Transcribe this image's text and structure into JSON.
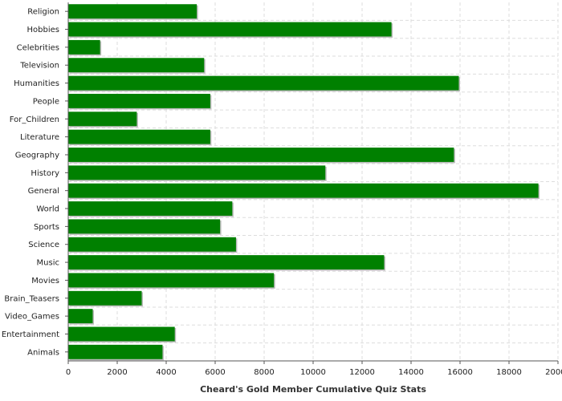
{
  "chart_data": {
    "type": "bar",
    "orientation": "horizontal",
    "categories": [
      "Religion",
      "Hobbies",
      "Celebrities",
      "Television",
      "Humanities",
      "People",
      "For_Children",
      "Literature",
      "Geography",
      "History",
      "General",
      "World",
      "Sports",
      "Science",
      "Music",
      "Movies",
      "Brain_Teasers",
      "Video_Games",
      "Entertainment",
      "Animals"
    ],
    "values": [
      5250,
      13200,
      1300,
      5550,
      15950,
      5800,
      2800,
      5800,
      15750,
      10500,
      19200,
      6700,
      6200,
      6850,
      12900,
      8400,
      3000,
      1000,
      4350,
      3850
    ],
    "title": "",
    "xlabel": "Cheard's Gold Member Cumulative Quiz Stats",
    "ylabel": "",
    "xlim": [
      0,
      20000
    ],
    "xticks": [
      0,
      2000,
      4000,
      6000,
      8000,
      10000,
      12000,
      14000,
      16000,
      18000,
      20000
    ],
    "grid": true,
    "legend": "none",
    "colors": {
      "bar": "#008000",
      "grid": "#dddddd",
      "axis": "#555555"
    }
  }
}
